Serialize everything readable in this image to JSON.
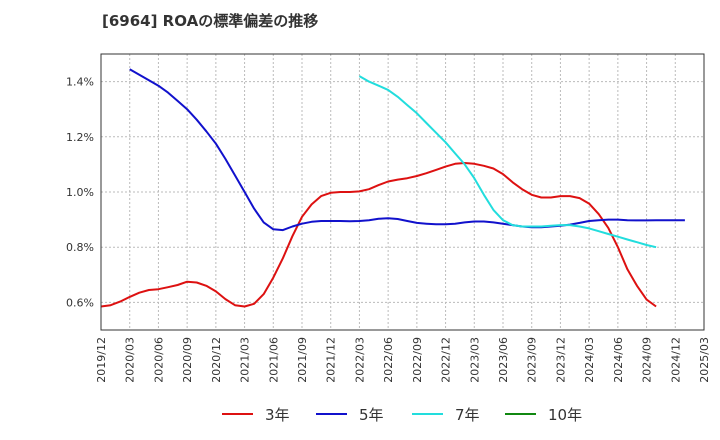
{
  "chart_data": {
    "type": "line",
    "title": "[6964]  ROAの標準偏差の推移",
    "x_ticks": [
      "2019/12",
      "2020/03",
      "2020/06",
      "2020/09",
      "2020/12",
      "2021/03",
      "2021/06",
      "2021/09",
      "2021/12",
      "2022/03",
      "2022/06",
      "2022/09",
      "2022/12",
      "2023/03",
      "2023/06",
      "2023/09",
      "2023/12",
      "2024/03",
      "2024/06",
      "2024/09",
      "2024/12",
      "2025/03"
    ],
    "y_ticks": [
      "0.6%",
      "0.8%",
      "1.0%",
      "1.2%",
      "1.4%"
    ],
    "y_tick_values": [
      0.6,
      0.8,
      1.0,
      1.2,
      1.4
    ],
    "ylim": [
      0.5,
      1.5
    ],
    "xlim": [
      "2019/12",
      "2025/03"
    ],
    "grid": true,
    "legend_position": "bottom",
    "series": [
      {
        "name": "3年",
        "color": "#dd1111",
        "start": "2019/12",
        "values": [
          0.585,
          0.59,
          0.603,
          0.62,
          0.635,
          0.645,
          0.648,
          0.655,
          0.663,
          0.675,
          0.672,
          0.66,
          0.64,
          0.612,
          0.59,
          0.585,
          0.595,
          0.63,
          0.69,
          0.76,
          0.84,
          0.91,
          0.955,
          0.985,
          0.997,
          1.0,
          1.0,
          1.002,
          1.01,
          1.025,
          1.038,
          1.045,
          1.05,
          1.058,
          1.068,
          1.08,
          1.092,
          1.102,
          1.105,
          1.102,
          1.095,
          1.085,
          1.065,
          1.035,
          1.01,
          0.99,
          0.98,
          0.98,
          0.985,
          0.985,
          0.978,
          0.958,
          0.92,
          0.87,
          0.8,
          0.72,
          0.66,
          0.61,
          0.585
        ]
      },
      {
        "name": "5年",
        "color": "#1111cc",
        "start": "2020/03",
        "values": [
          1.445,
          1.425,
          1.405,
          1.385,
          1.36,
          1.33,
          1.3,
          1.262,
          1.22,
          1.175,
          1.12,
          1.06,
          1.0,
          0.94,
          0.89,
          0.865,
          0.862,
          0.875,
          0.885,
          0.892,
          0.895,
          0.895,
          0.895,
          0.894,
          0.895,
          0.898,
          0.903,
          0.905,
          0.902,
          0.895,
          0.888,
          0.885,
          0.883,
          0.883,
          0.885,
          0.89,
          0.893,
          0.893,
          0.89,
          0.885,
          0.88,
          0.875,
          0.872,
          0.872,
          0.875,
          0.878,
          0.882,
          0.888,
          0.895,
          0.898,
          0.9,
          0.9,
          0.898,
          0.897,
          0.897,
          0.898,
          0.898,
          0.898,
          0.898
        ]
      },
      {
        "name": "7年",
        "color": "#22dddd",
        "start": "2022/03",
        "values": [
          1.42,
          1.4,
          1.385,
          1.37,
          1.345,
          1.315,
          1.285,
          1.25,
          1.215,
          1.18,
          1.14,
          1.1,
          1.05,
          0.99,
          0.935,
          0.898,
          0.88,
          0.875,
          0.875,
          0.875,
          0.878,
          0.88,
          0.88,
          0.875,
          0.868,
          0.858,
          0.848,
          0.838,
          0.828,
          0.818,
          0.808,
          0.8
        ]
      },
      {
        "name": "10年",
        "color": "#118811",
        "start": "2019/12",
        "values": []
      }
    ]
  }
}
